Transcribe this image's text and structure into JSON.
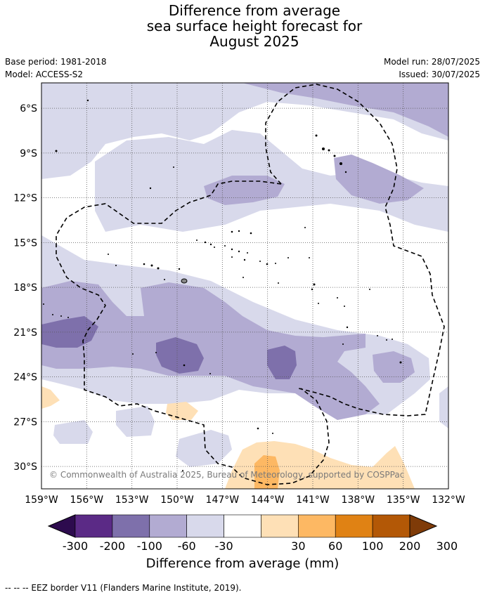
{
  "title_lines": [
    "Difference from average",
    "sea surface height forecast for",
    "August 2025"
  ],
  "meta": {
    "base_period": "Base period: 1981-2018",
    "model": "Model: ACCESS-S2",
    "model_run": "Model run: 28/07/2025",
    "issued": "Issued: 30/07/2025"
  },
  "map": {
    "lon_range": [
      -159,
      -132
    ],
    "lat_range": [
      -31.5,
      -4.3
    ],
    "lon_ticks": [
      -159,
      -156,
      -153,
      -150,
      -147,
      -144,
      -141,
      -138,
      -135,
      -132
    ],
    "lon_tick_labels": [
      "159°W",
      "156°W",
      "153°W",
      "150°W",
      "147°W",
      "144°W",
      "141°W",
      "138°W",
      "135°W",
      "132°W"
    ],
    "lat_ticks": [
      -6,
      -9,
      -12,
      -15,
      -18,
      -21,
      -24,
      -27,
      -30
    ],
    "lat_tick_labels": [
      "6°S",
      "9°S",
      "12°S",
      "15°S",
      "18°S",
      "21°S",
      "24°S",
      "27°S",
      "30°S"
    ],
    "grid": "dotted"
  },
  "colorbar": {
    "colors": [
      "#2d0b4e",
      "#5b2a86",
      "#7e70ab",
      "#b2abd2",
      "#d8d9eb",
      "#ffffff",
      "#fee0b6",
      "#fdb863",
      "#e08214",
      "#b35806",
      "#7f3b08"
    ],
    "tick_labels": [
      "-300",
      "-200",
      "-100",
      "-60",
      "-30",
      "30",
      "60",
      "100",
      "200",
      "300"
    ],
    "label": "Difference from average (mm)"
  },
  "copyright": "© Commonwealth of Australia 2025, Bureau of Meteorology, supported by COSPPac",
  "footnote": "--  --  -- EEZ border V11 (Flanders Marine Institute, 2019)."
}
